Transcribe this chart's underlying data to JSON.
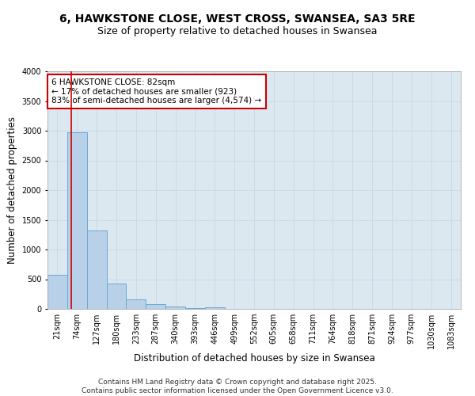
{
  "title_line1": "6, HAWKSTONE CLOSE, WEST CROSS, SWANSEA, SA3 5RE",
  "title_line2": "Size of property relative to detached houses in Swansea",
  "xlabel": "Distribution of detached houses by size in Swansea",
  "ylabel": "Number of detached properties",
  "bin_labels": [
    "21sqm",
    "74sqm",
    "127sqm",
    "180sqm",
    "233sqm",
    "287sqm",
    "340sqm",
    "393sqm",
    "446sqm",
    "499sqm",
    "552sqm",
    "605sqm",
    "658sqm",
    "711sqm",
    "764sqm",
    "818sqm",
    "871sqm",
    "924sqm",
    "977sqm",
    "1030sqm",
    "1083sqm"
  ],
  "bin_values": [
    580,
    2970,
    1320,
    430,
    160,
    80,
    40,
    20,
    25,
    0,
    0,
    0,
    0,
    0,
    0,
    0,
    0,
    0,
    0,
    0,
    0
  ],
  "bar_color": "#b8d0e8",
  "bar_edge_color": "#6aaad4",
  "red_line_bin": 1,
  "annotation_text": "6 HAWKSTONE CLOSE: 82sqm\n← 17% of detached houses are smaller (923)\n83% of semi-detached houses are larger (4,574) →",
  "annotation_box_color": "#ffffff",
  "annotation_box_edge_color": "#cc0000",
  "ylim": [
    0,
    4000
  ],
  "yticks": [
    0,
    500,
    1000,
    1500,
    2000,
    2500,
    3000,
    3500,
    4000
  ],
  "grid_color": "#c8d8e8",
  "background_color": "#dce8f0",
  "footer_text": "Contains HM Land Registry data © Crown copyright and database right 2025.\nContains public sector information licensed under the Open Government Licence v3.0.",
  "title_fontsize": 10,
  "subtitle_fontsize": 9,
  "tick_fontsize": 7,
  "label_fontsize": 8.5,
  "annotation_fontsize": 7.5,
  "footer_fontsize": 6.5
}
